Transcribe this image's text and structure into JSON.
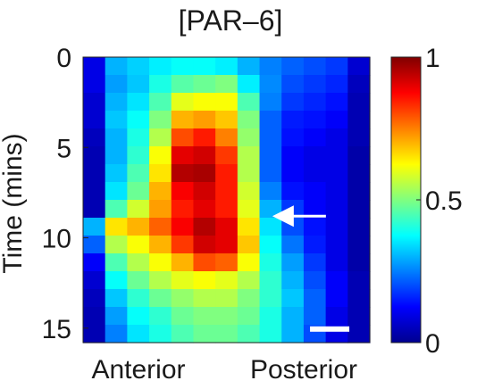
{
  "chart_data": {
    "type": "heatmap",
    "title": "[PAR–6]",
    "ylabel": "Time (mins)",
    "xlabel": "",
    "x_tick_labels": [
      "Anterior",
      "Posterior"
    ],
    "y_ticks": [
      0,
      5,
      10,
      15
    ],
    "ylim": [
      0,
      15.8
    ],
    "y_inverted": true,
    "colorbar": {
      "colormap": "jet",
      "range": [
        0,
        1
      ],
      "ticks": [
        0,
        0.5,
        1
      ],
      "tick_labels": [
        "0",
        "0.5",
        "1"
      ]
    },
    "grid": {
      "rows": 16,
      "cols": 13
    },
    "values": [
      [
        0.1,
        0.3,
        0.33,
        0.36,
        0.38,
        0.38,
        0.36,
        0.3,
        0.25,
        0.22,
        0.2,
        0.18,
        0.08
      ],
      [
        0.1,
        0.28,
        0.32,
        0.4,
        0.46,
        0.48,
        0.5,
        0.36,
        0.26,
        0.2,
        0.18,
        0.16,
        0.06
      ],
      [
        0.08,
        0.3,
        0.35,
        0.45,
        0.6,
        0.62,
        0.62,
        0.45,
        0.25,
        0.18,
        0.16,
        0.14,
        0.05
      ],
      [
        0.08,
        0.32,
        0.38,
        0.5,
        0.7,
        0.72,
        0.68,
        0.5,
        0.22,
        0.15,
        0.14,
        0.12,
        0.05
      ],
      [
        0.06,
        0.3,
        0.4,
        0.55,
        0.8,
        0.85,
        0.75,
        0.52,
        0.22,
        0.14,
        0.12,
        0.1,
        0.05
      ],
      [
        0.05,
        0.3,
        0.42,
        0.62,
        0.9,
        0.92,
        0.82,
        0.55,
        0.22,
        0.12,
        0.1,
        0.1,
        0.04
      ],
      [
        0.05,
        0.32,
        0.45,
        0.65,
        0.95,
        0.96,
        0.85,
        0.55,
        0.22,
        0.12,
        0.1,
        0.1,
        0.04
      ],
      [
        0.05,
        0.35,
        0.48,
        0.7,
        0.88,
        0.92,
        0.85,
        0.58,
        0.25,
        0.14,
        0.12,
        0.1,
        0.04
      ],
      [
        0.05,
        0.45,
        0.58,
        0.72,
        0.85,
        0.9,
        0.85,
        0.6,
        0.3,
        0.18,
        0.12,
        0.1,
        0.04
      ],
      [
        0.3,
        0.65,
        0.7,
        0.78,
        0.88,
        0.95,
        0.9,
        0.65,
        0.35,
        0.2,
        0.14,
        0.1,
        0.04
      ],
      [
        0.22,
        0.55,
        0.62,
        0.7,
        0.82,
        0.92,
        0.9,
        0.68,
        0.38,
        0.24,
        0.15,
        0.1,
        0.04
      ],
      [
        0.12,
        0.45,
        0.55,
        0.62,
        0.7,
        0.8,
        0.78,
        0.62,
        0.4,
        0.28,
        0.18,
        0.1,
        0.04
      ],
      [
        0.08,
        0.38,
        0.48,
        0.55,
        0.6,
        0.62,
        0.6,
        0.55,
        0.42,
        0.3,
        0.2,
        0.12,
        0.05
      ],
      [
        0.06,
        0.32,
        0.42,
        0.48,
        0.52,
        0.55,
        0.55,
        0.5,
        0.42,
        0.32,
        0.22,
        0.12,
        0.05
      ],
      [
        0.05,
        0.28,
        0.38,
        0.42,
        0.48,
        0.5,
        0.5,
        0.48,
        0.4,
        0.3,
        0.22,
        0.1,
        0.05
      ],
      [
        0.05,
        0.25,
        0.35,
        0.4,
        0.45,
        0.48,
        0.48,
        0.45,
        0.4,
        0.3,
        0.2,
        0.1,
        0.05
      ]
    ],
    "annotations": [
      {
        "type": "arrow",
        "direction": "left",
        "color": "#ffffff",
        "at_time": 8.8,
        "at_position": 0.66
      },
      {
        "type": "scale-bar",
        "color": "#ffffff",
        "at_time": 15.0,
        "at_position": 0.86
      }
    ]
  }
}
